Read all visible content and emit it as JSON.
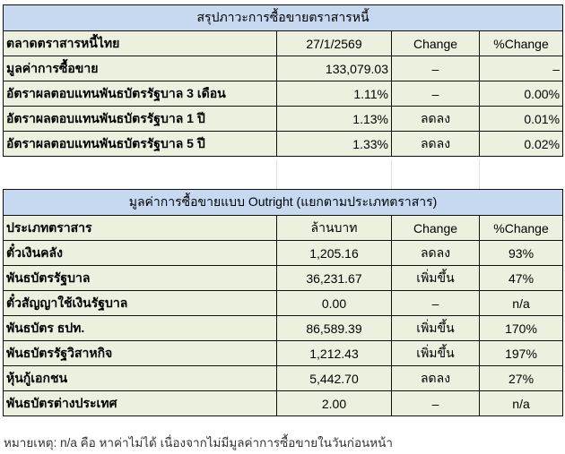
{
  "summary": {
    "title": "สรุปภาวะการซื้อขายตราสารหนี้",
    "header": [
      "ตลาดตราสารหนี้ไทย",
      "27/1/2569",
      "Change",
      "%Change"
    ],
    "rows": [
      [
        "มูลค่าการซื้อขาย",
        "133,079.03",
        "–",
        "–"
      ],
      [
        "อัตราผลตอบแทนพันธบัตรรัฐบาล 3 เดือน",
        "1.11%",
        "–",
        "0.00%"
      ],
      [
        "อัตราผลตอบแทนพันธบัตรรัฐบาล 1 ปี",
        "1.13%",
        "ลดลง",
        "0.01%"
      ],
      [
        "อัตราผลตอบแทนพันธบัตรรัฐบาล 5 ปี",
        "1.33%",
        "ลดลง",
        "0.02%"
      ]
    ]
  },
  "outright": {
    "title": "มูลค่าการซื้อขายแบบ Outright (แยกตามประเภทตราสาร)",
    "header": [
      "ประเภทตราสาร",
      "ล้านบาท",
      "Change",
      "%Change"
    ],
    "rows": [
      [
        "ตั๋วเงินคลัง",
        "1,205.16",
        "ลดลง",
        "93%"
      ],
      [
        "พันธบัตรรัฐบาล",
        "36,231.67",
        "เพิ่มขึ้น",
        "47%"
      ],
      [
        "ตั๋วสัญญาใช้เงินรัฐบาล",
        "0.00",
        "–",
        "n/a"
      ],
      [
        "พันธบัตร ธปท.",
        "86,589.39",
        "เพิ่มขึ้น",
        "170%"
      ],
      [
        "พันธบัตรรัฐวิสาหกิจ",
        "1,212.43",
        "เพิ่มขึ้น",
        "197%"
      ],
      [
        "หุ้นกู้เอกชน",
        "5,442.70",
        "ลดลง",
        "27%"
      ],
      [
        "พันธบัตรต่างประเทศ",
        "2.00",
        "–",
        "n/a"
      ]
    ]
  },
  "note": "หมายเหตุ: n/a คือ หาค่าไม่ได้ เนื่องจากไม่มีมูลค่าการซื้อขายในวันก่อนหน้า",
  "colors": {
    "title_bg": "#c6d9f0",
    "cell_bg": "#ebf1de",
    "border": "#111111"
  }
}
